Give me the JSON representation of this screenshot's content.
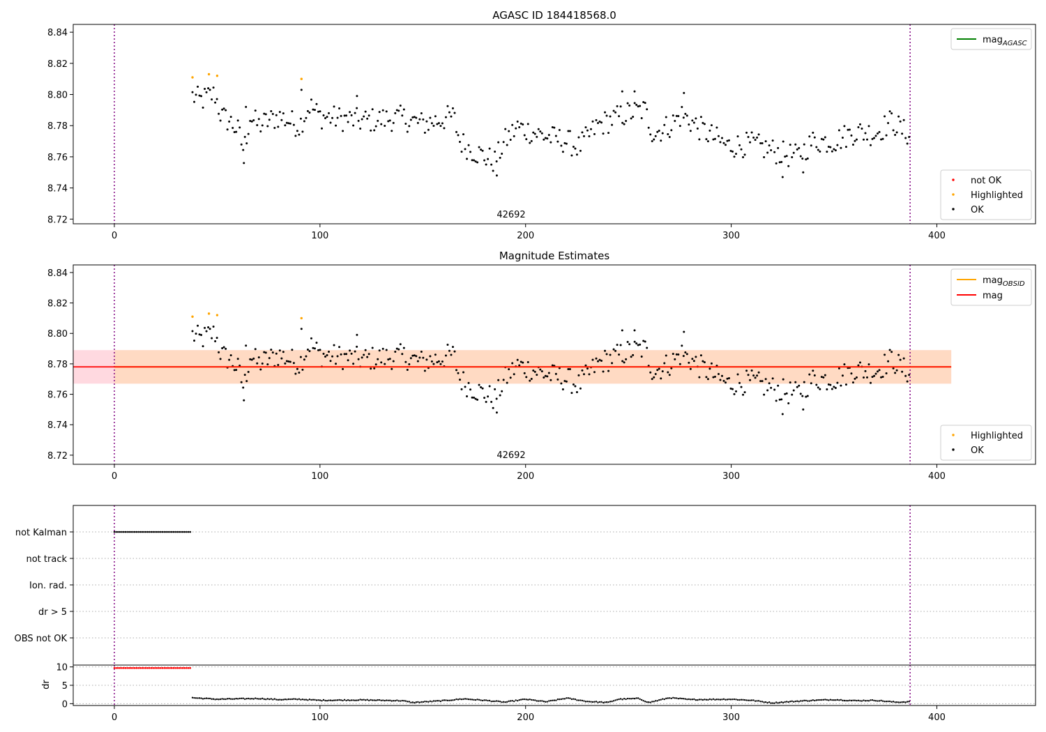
{
  "colors": {
    "ok": "#000000",
    "highlighted": "#ffa500",
    "not_ok": "#ff0000",
    "mag_agasc": "#008000",
    "mag_obsid": "#ffa500",
    "mag": "#ff0000",
    "obs_boundary": "#800080",
    "band_outer": "#ffc0cb",
    "band_inner": "#ffdab9"
  },
  "chart_data": [
    {
      "type": "scatter",
      "title": "AGASC ID 184418568.0",
      "xlim": [
        -20,
        448
      ],
      "ylim": [
        8.717,
        8.845
      ],
      "xticks": [
        0,
        100,
        200,
        300,
        400
      ],
      "yticks": [
        8.72,
        8.74,
        8.76,
        8.78,
        8.8,
        8.82,
        8.84
      ],
      "ytick_labels": [
        "8.72",
        "8.74",
        "8.76",
        "8.78",
        "8.80",
        "8.82",
        "8.84"
      ],
      "obs_boundaries": [
        0,
        387
      ],
      "obsid_label": "42692",
      "obsid_label_x": 193,
      "lines_legend": [
        {
          "label": "mag",
          "sub": "AGASC",
          "color_key": "mag_agasc"
        }
      ],
      "points_legend": [
        {
          "label": "not OK",
          "color_key": "not_ok"
        },
        {
          "label": "Highlighted",
          "color_key": "highlighted"
        },
        {
          "label": "OK",
          "color_key": "ok"
        }
      ],
      "points_legend_position": "lower right",
      "lines_legend_position": "upper right",
      "highlighted": {
        "x": [
          38,
          46,
          50,
          91
        ],
        "y": [
          8.811,
          8.813,
          8.812,
          8.81
        ]
      }
    },
    {
      "type": "scatter",
      "title": "Magnitude Estimates",
      "xlim": [
        -20,
        448
      ],
      "ylim": [
        8.714,
        8.845
      ],
      "xticks": [
        0,
        100,
        200,
        300,
        400
      ],
      "yticks": [
        8.72,
        8.74,
        8.76,
        8.78,
        8.8,
        8.82,
        8.84
      ],
      "ytick_labels": [
        "8.72",
        "8.74",
        "8.76",
        "8.78",
        "8.80",
        "8.82",
        "8.84"
      ],
      "obs_boundaries": [
        0,
        387
      ],
      "obsid_label": "42692",
      "obsid_label_x": 193,
      "mag": 8.778,
      "mag_band": [
        8.767,
        8.789
      ],
      "obsid_band": [
        8.767,
        8.789
      ],
      "band_x": [
        0,
        407
      ],
      "lines_legend": [
        {
          "label": "mag",
          "sub": "OBSID",
          "color_key": "mag_obsid"
        },
        {
          "label": "mag",
          "sub": "",
          "color_key": "mag"
        }
      ],
      "points_legend": [
        {
          "label": "Highlighted",
          "color_key": "highlighted"
        },
        {
          "label": "OK",
          "color_key": "ok"
        }
      ],
      "points_legend_position": "lower right",
      "lines_legend_position": "upper right",
      "highlighted": {
        "x": [
          38,
          46,
          50,
          91
        ],
        "y": [
          8.811,
          8.813,
          8.812,
          8.81
        ]
      }
    },
    {
      "type": "scatter",
      "title": "",
      "xlim": [
        -20,
        448
      ],
      "flag_rows": [
        "not Kalman",
        "not track",
        "Ion. rad.",
        "dr > 5",
        "OBS not OK"
      ],
      "not_kalman_range": [
        0,
        37
      ],
      "obs_boundaries": [
        0,
        387
      ]
    },
    {
      "type": "scatter",
      "title": "",
      "ylabel": "dr",
      "xlim": [
        -20,
        448
      ],
      "ylim": [
        -0.5,
        10.5
      ],
      "xticks": [
        0,
        100,
        200,
        300,
        400
      ],
      "yticks": [
        0,
        5,
        10
      ],
      "ytick_labels": [
        "0",
        "5",
        "10"
      ],
      "dr_high_range": [
        0,
        37
      ],
      "dr_high_value": 9.7,
      "obs_boundaries": [
        0,
        387
      ]
    }
  ],
  "light_curve": {
    "x_start": 38,
    "x_end": 387,
    "anchors": [
      [
        38,
        8.799
      ],
      [
        42,
        8.796
      ],
      [
        46,
        8.799
      ],
      [
        49,
        8.8
      ],
      [
        52,
        8.786
      ],
      [
        56,
        8.783
      ],
      [
        60,
        8.777
      ],
      [
        63,
        8.764
      ],
      [
        66,
        8.786
      ],
      [
        70,
        8.78
      ],
      [
        80,
        8.786
      ],
      [
        90,
        8.78
      ],
      [
        95,
        8.793
      ],
      [
        100,
        8.786
      ],
      [
        120,
        8.783
      ],
      [
        140,
        8.785
      ],
      [
        150,
        8.781
      ],
      [
        165,
        8.786
      ],
      [
        168,
        8.77
      ],
      [
        173,
        8.765
      ],
      [
        180,
        8.76
      ],
      [
        185,
        8.757
      ],
      [
        190,
        8.77
      ],
      [
        196,
        8.779
      ],
      [
        210,
        8.773
      ],
      [
        220,
        8.77
      ],
      [
        226,
        8.766
      ],
      [
        235,
        8.78
      ],
      [
        244,
        8.785
      ],
      [
        250,
        8.788
      ],
      [
        258,
        8.79
      ],
      [
        262,
        8.775
      ],
      [
        270,
        8.78
      ],
      [
        276,
        8.787
      ],
      [
        285,
        8.778
      ],
      [
        298,
        8.767
      ],
      [
        310,
        8.768
      ],
      [
        320,
        8.764
      ],
      [
        325,
        8.762
      ],
      [
        332,
        8.76
      ],
      [
        340,
        8.77
      ],
      [
        350,
        8.77
      ],
      [
        360,
        8.776
      ],
      [
        370,
        8.775
      ],
      [
        378,
        8.783
      ],
      [
        385,
        8.775
      ],
      [
        387,
        8.775
      ]
    ],
    "outliers": [
      [
        63,
        8.756
      ],
      [
        64,
        8.792
      ],
      [
        325,
        8.747
      ],
      [
        335,
        8.75
      ],
      [
        186,
        8.748
      ],
      [
        247,
        8.802
      ],
      [
        253,
        8.802
      ],
      [
        277,
        8.801
      ],
      [
        91,
        8.803
      ],
      [
        118,
        8.799
      ]
    ]
  },
  "dr_curve": {
    "anchors": [
      [
        38,
        1.6
      ],
      [
        50,
        1.2
      ],
      [
        60,
        1.3
      ],
      [
        70,
        1.4
      ],
      [
        80,
        1.1
      ],
      [
        90,
        1.2
      ],
      [
        100,
        0.9
      ],
      [
        120,
        1.0
      ],
      [
        140,
        0.8
      ],
      [
        145,
        0.3
      ],
      [
        160,
        0.8
      ],
      [
        170,
        1.3
      ],
      [
        180,
        0.9
      ],
      [
        190,
        0.4
      ],
      [
        200,
        1.2
      ],
      [
        210,
        0.5
      ],
      [
        220,
        1.5
      ],
      [
        230,
        0.6
      ],
      [
        240,
        0.3
      ],
      [
        245,
        1.2
      ],
      [
        255,
        1.4
      ],
      [
        260,
        0.3
      ],
      [
        270,
        1.6
      ],
      [
        280,
        1.1
      ],
      [
        300,
        1.2
      ],
      [
        310,
        0.9
      ],
      [
        320,
        0.2
      ],
      [
        330,
        0.6
      ],
      [
        340,
        0.9
      ],
      [
        350,
        1.1
      ],
      [
        360,
        0.8
      ],
      [
        370,
        0.9
      ],
      [
        380,
        0.4
      ],
      [
        387,
        0.5
      ]
    ]
  }
}
